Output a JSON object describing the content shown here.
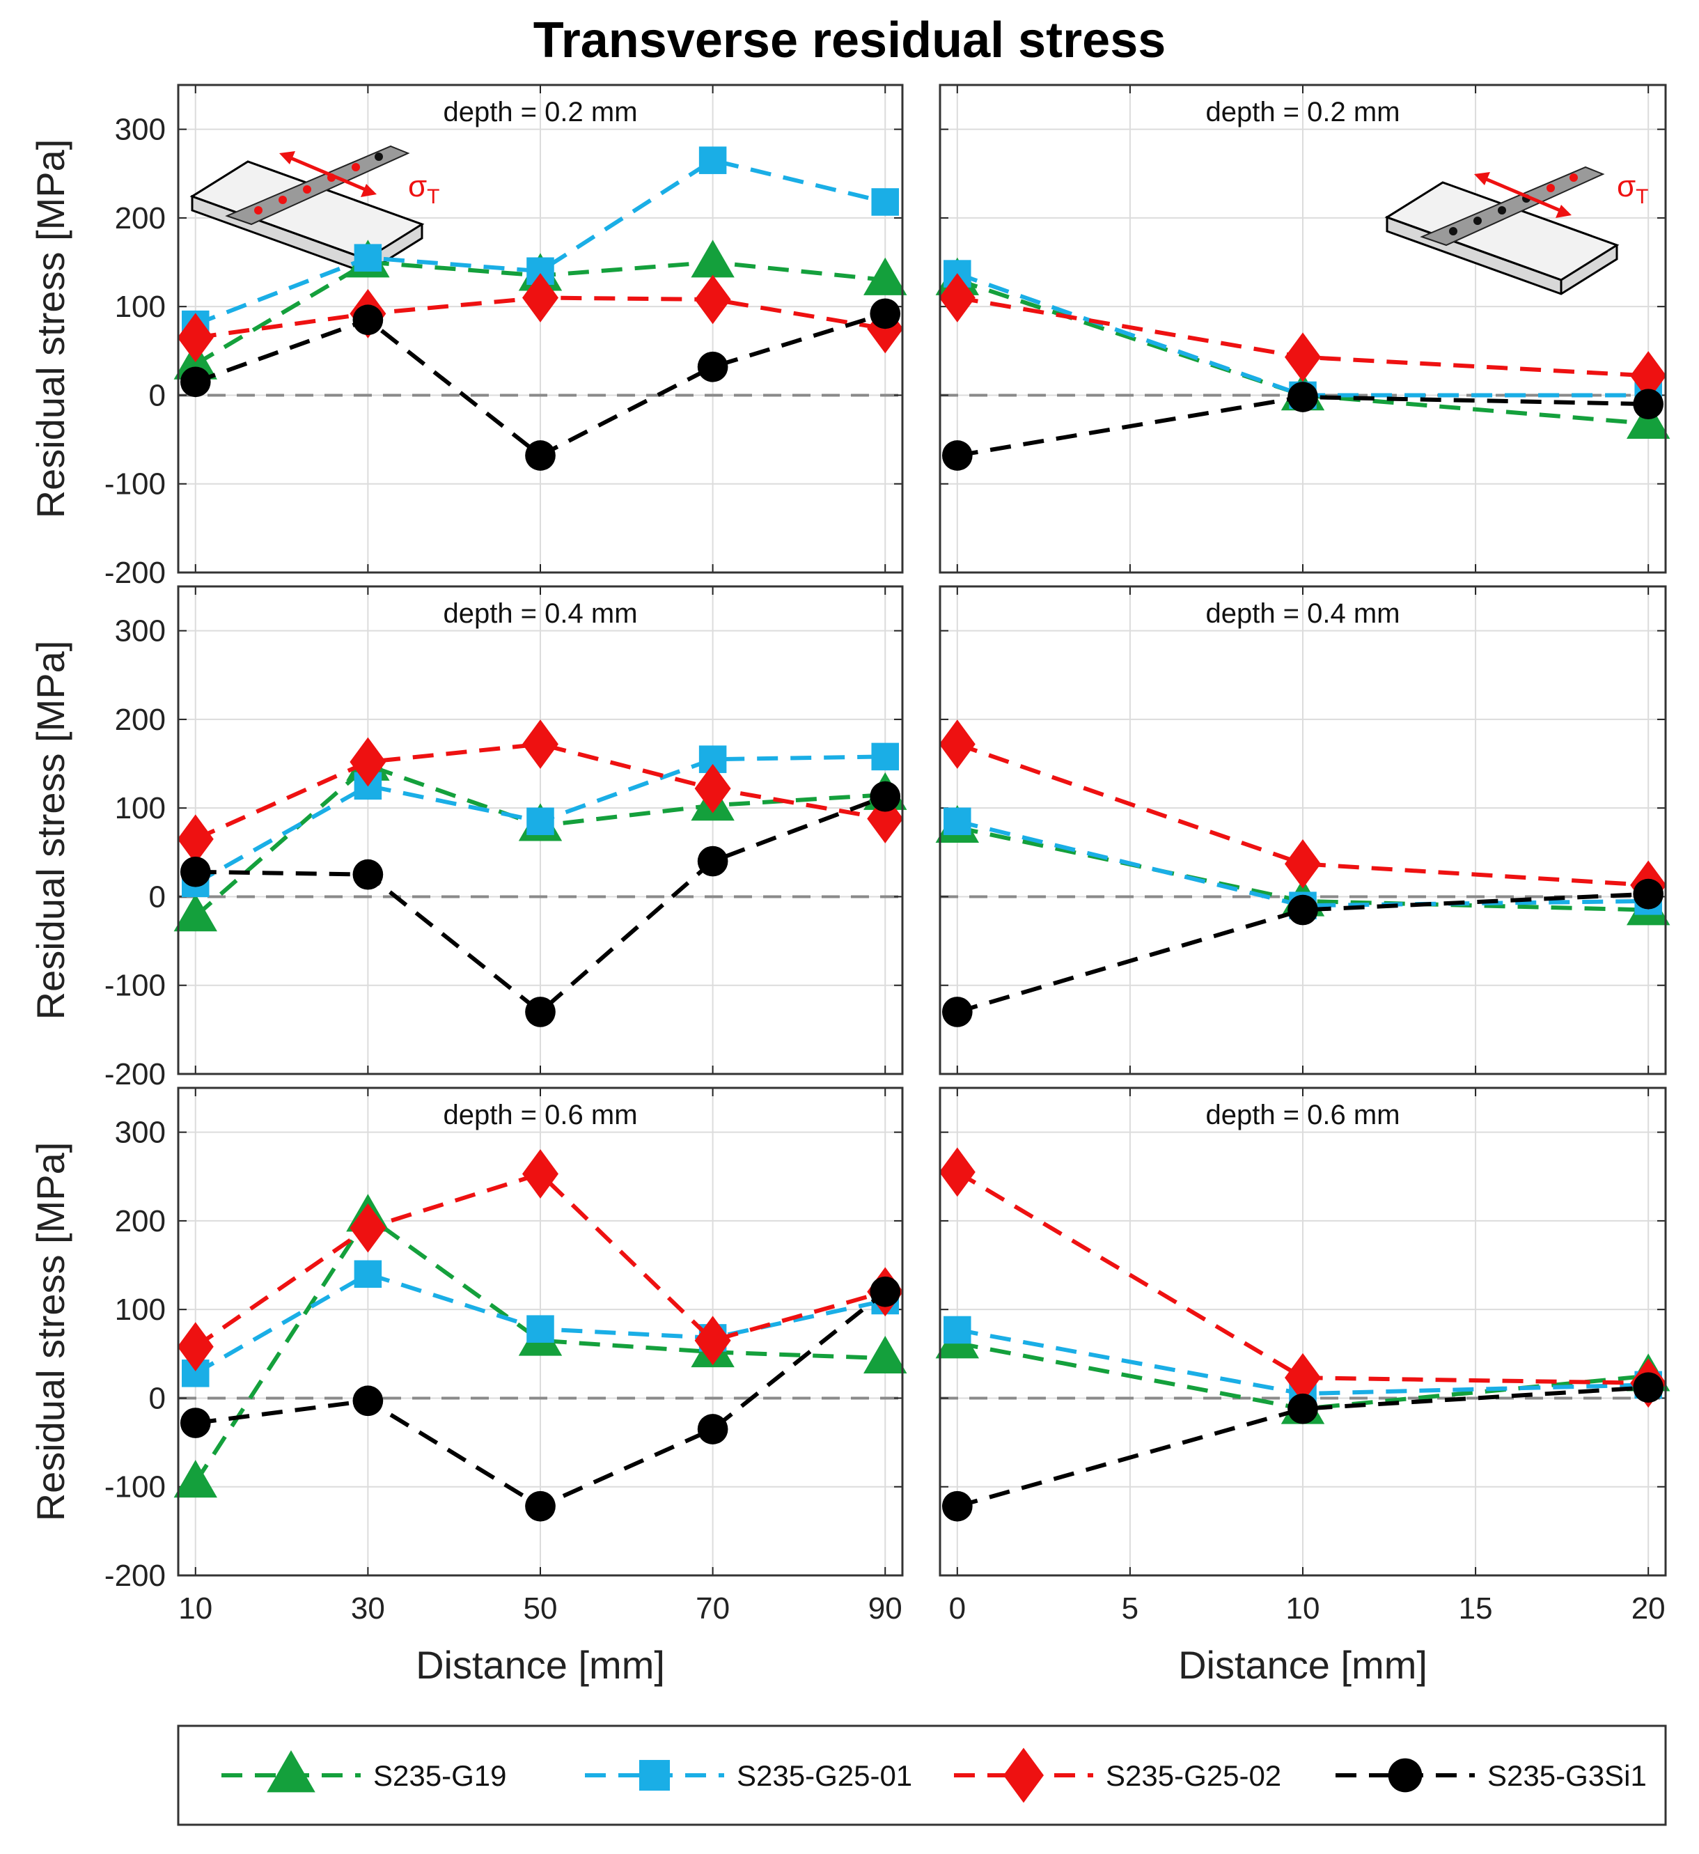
{
  "chart_data": {
    "type": "line",
    "title": "Transverse residual stress",
    "ylabel": "Residual stress [MPa]",
    "xlabel": "Distance [mm]",
    "ylim": [
      -200,
      350
    ],
    "yticks": [
      300,
      200,
      100,
      0,
      -100,
      -200
    ],
    "grid": true,
    "legend_position": "bottom",
    "sigma_label": "σ",
    "sigma_subscript": "T",
    "series_styles": [
      {
        "name": "S235-G19",
        "color": "#14a03c",
        "marker": "triangle"
      },
      {
        "name": "S235-G25-01",
        "color": "#1aaee6",
        "marker": "square"
      },
      {
        "name": "S235-G25-02",
        "color": "#ee1111",
        "marker": "diamond"
      },
      {
        "name": "S235-G3Si1",
        "color": "#000000",
        "marker": "circle"
      }
    ],
    "panels": [
      {
        "label": "depth = 0.2 mm",
        "x": [
          10,
          30,
          50,
          70,
          90
        ],
        "xlim": [
          8,
          92
        ],
        "xticks": [
          10,
          30,
          50,
          70,
          90
        ],
        "series": [
          {
            "name": "S235-G19",
            "values": [
              35,
              150,
              135,
              150,
              130
            ]
          },
          {
            "name": "S235-G25-01",
            "values": [
              80,
              155,
              140,
              265,
              218
            ]
          },
          {
            "name": "S235-G25-02",
            "values": [
              65,
              92,
              110,
              108,
              75
            ]
          },
          {
            "name": "S235-G3Si1",
            "values": [
              15,
              85,
              -68,
              32,
              92
            ]
          }
        ]
      },
      {
        "label": "depth = 0.2 mm",
        "x": [
          0,
          10,
          20
        ],
        "xlim": [
          -0.5,
          20.5
        ],
        "xticks": [
          0,
          5,
          10,
          15,
          20
        ],
        "series": [
          {
            "name": "S235-G19",
            "values": [
              130,
              0,
              -32
            ]
          },
          {
            "name": "S235-G25-01",
            "values": [
              137,
              0,
              0
            ]
          },
          {
            "name": "S235-G25-02",
            "values": [
              110,
              43,
              22
            ]
          },
          {
            "name": "S235-G3Si1",
            "values": [
              -68,
              -2,
              -10
            ]
          }
        ]
      },
      {
        "label": "depth = 0.4 mm",
        "x": [
          10,
          30,
          50,
          70,
          90
        ],
        "xlim": [
          8,
          92
        ],
        "xticks": [
          10,
          30,
          50,
          70,
          90
        ],
        "series": [
          {
            "name": "S235-G19",
            "values": [
              -22,
              148,
              80,
              103,
              115
            ]
          },
          {
            "name": "S235-G25-01",
            "values": [
              15,
              125,
              85,
              155,
              158
            ]
          },
          {
            "name": "S235-G25-02",
            "values": [
              65,
              152,
              172,
              122,
              88
            ]
          },
          {
            "name": "S235-G3Si1",
            "values": [
              28,
              25,
              -130,
              40,
              113
            ]
          }
        ]
      },
      {
        "label": "depth = 0.4 mm",
        "x": [
          0,
          10,
          20
        ],
        "xlim": [
          -0.5,
          20.5
        ],
        "xticks": [
          0,
          5,
          10,
          15,
          20
        ],
        "series": [
          {
            "name": "S235-G19",
            "values": [
              78,
              -5,
              -15
            ]
          },
          {
            "name": "S235-G25-01",
            "values": [
              85,
              -10,
              -5
            ]
          },
          {
            "name": "S235-G25-02",
            "values": [
              172,
              37,
              13
            ]
          },
          {
            "name": "S235-G3Si1",
            "values": [
              -130,
              -15,
              3
            ]
          }
        ]
      },
      {
        "label": "depth = 0.6 mm",
        "x": [
          10,
          30,
          50,
          70,
          90
        ],
        "xlim": [
          8,
          92
        ],
        "xticks": [
          10,
          30,
          50,
          70,
          90
        ],
        "series": [
          {
            "name": "S235-G19",
            "values": [
              -95,
              205,
              65,
              52,
              45
            ]
          },
          {
            "name": "S235-G25-01",
            "values": [
              28,
              140,
              78,
              68,
              110
            ]
          },
          {
            "name": "S235-G25-02",
            "values": [
              58,
              192,
              253,
              65,
              120
            ]
          },
          {
            "name": "S235-G3Si1",
            "values": [
              -28,
              -3,
              -122,
              -35,
              120
            ]
          }
        ]
      },
      {
        "label": "depth = 0.6 mm",
        "x": [
          0,
          10,
          20
        ],
        "xlim": [
          -0.5,
          20.5
        ],
        "xticks": [
          0,
          5,
          10,
          15,
          20
        ],
        "series": [
          {
            "name": "S235-G19",
            "values": [
              62,
              -12,
              25
            ]
          },
          {
            "name": "S235-G25-01",
            "values": [
              77,
              5,
              15
            ]
          },
          {
            "name": "S235-G25-02",
            "values": [
              255,
              23,
              17
            ]
          },
          {
            "name": "S235-G3Si1",
            "values": [
              -122,
              -12,
              12
            ]
          }
        ]
      }
    ]
  }
}
